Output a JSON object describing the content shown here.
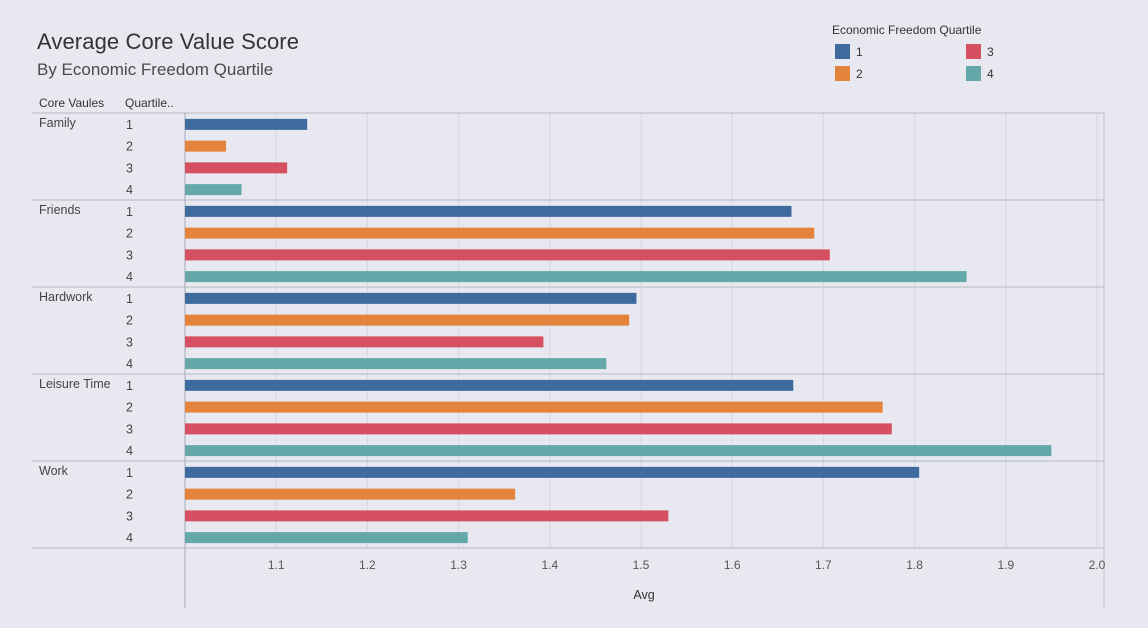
{
  "chart_data": {
    "type": "bar",
    "orientation": "horizontal",
    "title": "Average Core Value Score",
    "subtitle": "By Economic Freedom Quartile",
    "xlabel": "Avg",
    "row_header_1": "Core Vaules",
    "row_header_2": "Quartile..",
    "xlim": [
      1.0,
      2.0
    ],
    "xticks": [
      "1.1",
      "1.2",
      "1.3",
      "1.4",
      "1.5",
      "1.6",
      "1.7",
      "1.8",
      "1.9",
      "2.0"
    ],
    "grid": true,
    "legend": {
      "title": "Economic Freedom Quartile",
      "placement": "top-right",
      "items": [
        {
          "label": "1",
          "color": "#3e6a9e"
        },
        {
          "label": "2",
          "color": "#e4833b"
        },
        {
          "label": "3",
          "color": "#d55061"
        },
        {
          "label": "4",
          "color": "#64a8a9"
        }
      ]
    },
    "groups": [
      {
        "name": "Family",
        "quartiles": [
          "1",
          "2",
          "3",
          "4"
        ],
        "values": [
          1.134,
          1.045,
          1.112,
          1.062
        ]
      },
      {
        "name": "Friends",
        "quartiles": [
          "1",
          "2",
          "3",
          "4"
        ],
        "values": [
          1.665,
          1.69,
          1.707,
          1.857
        ]
      },
      {
        "name": "Hardwork",
        "quartiles": [
          "1",
          "2",
          "3",
          "4"
        ],
        "values": [
          1.495,
          1.487,
          1.393,
          1.462
        ]
      },
      {
        "name": "Leisure Time",
        "quartiles": [
          "1",
          "2",
          "3",
          "4"
        ],
        "values": [
          1.667,
          1.765,
          1.775,
          1.95
        ]
      },
      {
        "name": "Work",
        "quartiles": [
          "1",
          "2",
          "3",
          "4"
        ],
        "values": [
          1.805,
          1.362,
          1.53,
          1.31
        ]
      }
    ]
  }
}
